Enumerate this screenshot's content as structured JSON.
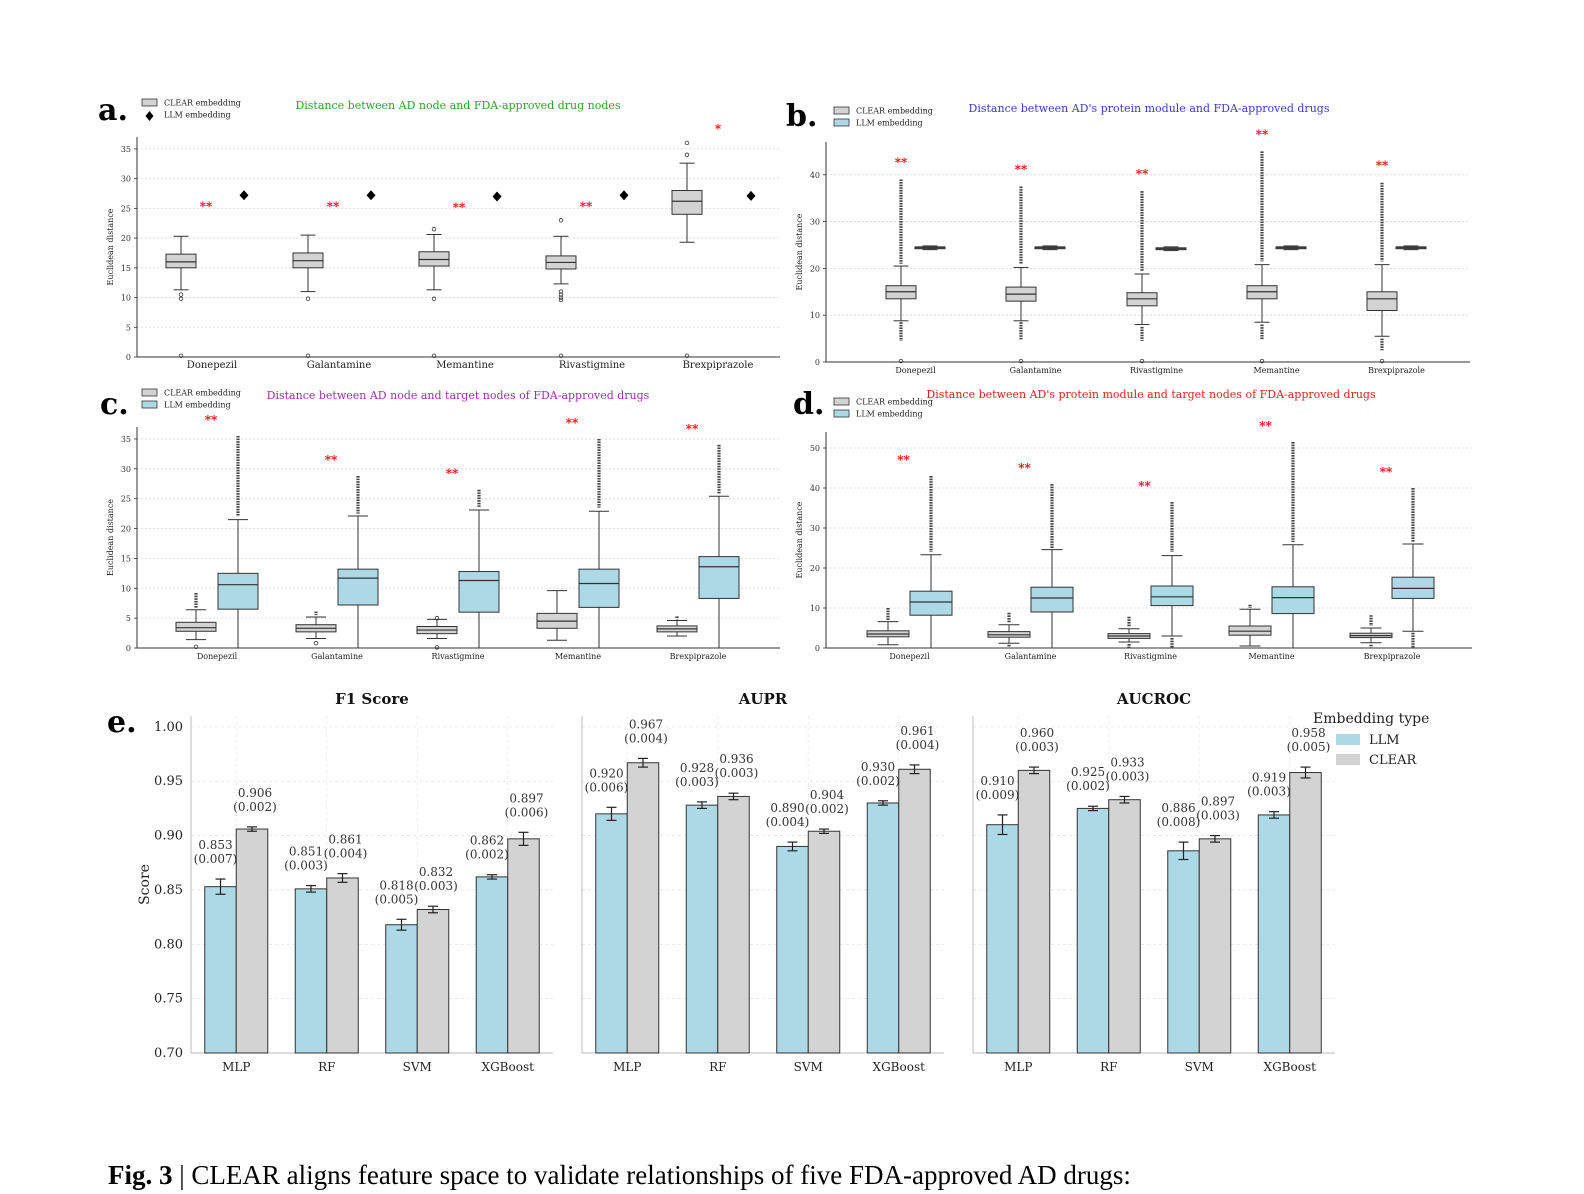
{
  "panels": [
    {
      "id": "a",
      "label": "a.",
      "title": "Distance between AD node and FDA-approved drug nodes",
      "title_color": "#2ca02c",
      "ylabel": "Euclidean distance",
      "ylim": [
        0,
        37
      ],
      "yticks": [
        0,
        5,
        10,
        15,
        20,
        25,
        30,
        35
      ],
      "legend": [
        "CLEAR embedding",
        "LLM embedding"
      ],
      "llm_style": "point"
    },
    {
      "id": "b",
      "label": "b.",
      "title": "Distance between AD's protein module and FDA-approved drugs",
      "title_color": "#3a3acf",
      "ylabel": "Euclidean distance",
      "ylim": [
        0,
        47
      ],
      "yticks": [
        0,
        10,
        20,
        30,
        40
      ],
      "legend": [
        "CLEAR embedding",
        "LLM embedding"
      ],
      "llm_style": "box"
    },
    {
      "id": "c",
      "label": "c.",
      "title": "Distance between AD node and target nodes of FDA-approved drugs",
      "title_color": "#9932a8",
      "ylabel": "Euclidean distance",
      "ylim": [
        0,
        37
      ],
      "yticks": [
        0,
        5,
        10,
        15,
        20,
        25,
        30,
        35
      ],
      "legend": [
        "CLEAR embedding",
        "LLM embedding"
      ],
      "llm_style": "box"
    },
    {
      "id": "d",
      "label": "d.",
      "title": "Distance between AD's protein module and target nodes of FDA-approved drugs",
      "title_color": "#e02020",
      "ylabel": "Euclidean distance",
      "ylim": [
        0,
        54
      ],
      "yticks": [
        0,
        10,
        20,
        30,
        40,
        50
      ],
      "legend": [
        "CLEAR embedding",
        "LLM embedding"
      ],
      "llm_style": "box"
    },
    {
      "id": "e",
      "label": "e.",
      "legend_title": "Embedding type",
      "legend": [
        "LLM",
        "CLEAR"
      ],
      "ylabel": "Score"
    }
  ],
  "chart_data": [
    {
      "type": "box",
      "panel": "a",
      "categories": [
        "Donepezil",
        "Galantamine",
        "Memantine",
        "Rivastigmine",
        "Brexpiprazole"
      ],
      "significance": [
        "**",
        "**",
        "**",
        "**",
        "*"
      ],
      "series": [
        {
          "name": "CLEAR embedding",
          "boxes": [
            {
              "q1": 15,
              "median": 16,
              "q3": 17.3,
              "whislo": 11.3,
              "whishi": 20.3,
              "fliers": [
                10.5,
                9.8,
                0.2
              ]
            },
            {
              "q1": 15,
              "median": 16.2,
              "q3": 17.5,
              "whislo": 11,
              "whishi": 20.5,
              "fliers": [
                9.8,
                0.2
              ]
            },
            {
              "q1": 15.3,
              "median": 16.4,
              "q3": 17.7,
              "whislo": 11.3,
              "whishi": 20.6,
              "fliers": [
                21.5,
                9.8,
                0.2
              ]
            },
            {
              "q1": 14.8,
              "median": 15.9,
              "q3": 17,
              "whislo": 12.3,
              "whishi": 20.3,
              "fliers": [
                23,
                11,
                10.5,
                10,
                9.6,
                0.2
              ]
            },
            {
              "q1": 24,
              "median": 26.2,
              "q3": 28,
              "whislo": 19.3,
              "whishi": 32.6,
              "fliers": [
                34,
                36,
                0.2
              ]
            }
          ]
        },
        {
          "name": "LLM embedding",
          "values": [
            27.2,
            27.2,
            27,
            27.2,
            27.1
          ]
        }
      ]
    },
    {
      "type": "box",
      "panel": "b",
      "categories": [
        "Donepezil",
        "Galantamine",
        "Rivastigmine",
        "Memantine",
        "Brexpiprazole"
      ],
      "significance": [
        "**",
        "**",
        "**",
        "**",
        "**"
      ],
      "series": [
        {
          "name": "CLEAR embedding",
          "boxes": [
            {
              "q1": 13.5,
              "median": 15,
              "q3": 16.3,
              "whislo": 8.8,
              "whishi": 20.5,
              "flier_low": [
                4.5,
                8.5
              ],
              "flier_high": [
                21,
                39
              ],
              "fliers": [
                0.2
              ]
            },
            {
              "q1": 13,
              "median": 14.5,
              "q3": 16,
              "whislo": 8.8,
              "whishi": 20.2,
              "flier_low": [
                4.8,
                8.5
              ],
              "flier_high": [
                21,
                37.5
              ],
              "fliers": [
                0.2
              ]
            },
            {
              "q1": 12,
              "median": 13.5,
              "q3": 14.8,
              "whislo": 8,
              "whishi": 18.8,
              "flier_low": [
                4.5,
                7.5
              ],
              "flier_high": [
                19.5,
                36.5
              ],
              "fliers": [
                0.2
              ]
            },
            {
              "q1": 13.5,
              "median": 15,
              "q3": 16.3,
              "whislo": 8.5,
              "whishi": 20.8,
              "flier_low": [
                4.8,
                8
              ],
              "flier_high": [
                21.5,
                45
              ],
              "fliers": [
                0.2
              ]
            },
            {
              "q1": 11,
              "median": 13.5,
              "q3": 15,
              "whislo": 5.5,
              "whishi": 20.8,
              "flier_low": [
                2.5,
                5
              ],
              "flier_high": [
                21.5,
                38.3
              ],
              "fliers": [
                0.2
              ]
            }
          ]
        },
        {
          "name": "LLM embedding",
          "boxes": [
            {
              "q1": 24.2,
              "median": 24.4,
              "q3": 24.6,
              "whislo": 24,
              "whishi": 24.8,
              "fliers": []
            },
            {
              "q1": 24.2,
              "median": 24.4,
              "q3": 24.6,
              "whislo": 24,
              "whishi": 24.8,
              "fliers": []
            },
            {
              "q1": 24,
              "median": 24.2,
              "q3": 24.4,
              "whislo": 23.8,
              "whishi": 24.6,
              "fliers": []
            },
            {
              "q1": 24.2,
              "median": 24.4,
              "q3": 24.6,
              "whislo": 24,
              "whishi": 24.8,
              "fliers": []
            },
            {
              "q1": 24.2,
              "median": 24.4,
              "q3": 24.6,
              "whislo": 24,
              "whishi": 24.8,
              "fliers": []
            }
          ]
        }
      ]
    },
    {
      "type": "box",
      "panel": "c",
      "categories": [
        "Donepezil",
        "Galantamine",
        "Rivastigmine",
        "Memantine",
        "Brexpiprazole"
      ],
      "significance": [
        "**",
        "**",
        "**",
        "**",
        "**"
      ],
      "series": [
        {
          "name": "CLEAR embedding",
          "boxes": [
            {
              "q1": 2.8,
              "median": 3.4,
              "q3": 4.3,
              "whislo": 1.4,
              "whishi": 6.4,
              "flier_high": [
                6.6,
                9.2
              ],
              "fliers": [
                0.2
              ]
            },
            {
              "q1": 2.7,
              "median": 3.3,
              "q3": 3.9,
              "whislo": 1.6,
              "whishi": 5.2,
              "flier_high": [
                5.5,
                6.1
              ],
              "fliers": [
                0.8
              ]
            },
            {
              "q1": 2.4,
              "median": 3,
              "q3": 3.6,
              "whislo": 1.6,
              "whishi": 4.8,
              "fliers": [
                5,
                0.1
              ]
            },
            {
              "q1": 3.3,
              "median": 4.5,
              "q3": 5.8,
              "whislo": 1.3,
              "whishi": 9.6,
              "fliers": []
            },
            {
              "q1": 2.7,
              "median": 3.2,
              "q3": 3.7,
              "whislo": 2,
              "whishi": 4.6,
              "flier_high": [
                4.8,
                5.3
              ],
              "fliers": []
            }
          ]
        },
        {
          "name": "LLM embedding",
          "boxes": [
            {
              "q1": 6.5,
              "median": 10.6,
              "q3": 12.5,
              "whislo": 0,
              "whishi": 21.5,
              "flier_high": [
                22,
                35.5
              ],
              "fliers": []
            },
            {
              "q1": 7.2,
              "median": 11.7,
              "q3": 13.2,
              "whislo": 0,
              "whishi": 22.1,
              "flier_high": [
                22.5,
                28.8
              ],
              "fliers": []
            },
            {
              "q1": 6,
              "median": 11.3,
              "q3": 12.8,
              "whislo": 0,
              "whishi": 23.1,
              "flier_high": [
                23.5,
                26.5
              ],
              "fliers": []
            },
            {
              "q1": 6.8,
              "median": 10.8,
              "q3": 13.2,
              "whislo": 0,
              "whishi": 22.9,
              "flier_high": [
                23.5,
                35
              ],
              "fliers": []
            },
            {
              "q1": 8.3,
              "median": 13.6,
              "q3": 15.3,
              "whislo": 0,
              "whishi": 25.4,
              "flier_high": [
                25.8,
                34
              ]
            }
          ]
        }
      ]
    },
    {
      "type": "box",
      "panel": "d",
      "categories": [
        "Donepezil",
        "Galantamine",
        "Rivastigmine",
        "Memantine",
        "Brexpiprazole"
      ],
      "significance": [
        "**",
        "**",
        "**",
        "**",
        "**"
      ],
      "series": [
        {
          "name": "CLEAR embedding",
          "boxes": [
            {
              "q1": 2.8,
              "median": 3.5,
              "q3": 4.3,
              "whislo": 0.8,
              "whishi": 6.6,
              "flier_high": [
                7,
                10
              ],
              "fliers": []
            },
            {
              "q1": 2.7,
              "median": 3.3,
              "q3": 4.1,
              "whislo": 1.2,
              "whishi": 5.8,
              "flier_high": [
                6.3,
                8.8
              ],
              "flier_low": [
                0.2,
                0.8
              ]
            },
            {
              "q1": 2.4,
              "median": 3,
              "q3": 3.6,
              "whislo": 1.5,
              "whishi": 4.8,
              "flier_high": [
                5.3,
                7.8
              ],
              "flier_low": [
                0,
                1
              ]
            },
            {
              "q1": 3.2,
              "median": 4.2,
              "q3": 5.5,
              "whislo": 0.5,
              "whishi": 9.7,
              "flier_high": [
                10,
                10.8
              ]
            },
            {
              "q1": 2.6,
              "median": 3.1,
              "q3": 3.7,
              "whislo": 1.3,
              "whishi": 5,
              "flier_high": [
                5.5,
                8.2
              ],
              "flier_low": [
                0,
                0.8
              ]
            }
          ]
        },
        {
          "name": "LLM embedding",
          "boxes": [
            {
              "q1": 8.2,
              "median": 11.5,
              "q3": 14.2,
              "whislo": 0,
              "whishi": 23.3,
              "flier_high": [
                24,
                43
              ]
            },
            {
              "q1": 9,
              "median": 12.5,
              "q3": 15.2,
              "whislo": 0,
              "whishi": 24.6,
              "flier_high": [
                25,
                41
              ]
            },
            {
              "q1": 10.6,
              "median": 12.8,
              "q3": 15.5,
              "whislo": 3,
              "whishi": 23.1,
              "flier_high": [
                24,
                36.5
              ],
              "flier_low": [
                0,
                2.5
              ]
            },
            {
              "q1": 8.6,
              "median": 12.6,
              "q3": 15.3,
              "whislo": 0,
              "whishi": 25.8,
              "flier_high": [
                26.5,
                51.5
              ]
            },
            {
              "q1": 12.4,
              "median": 14.9,
              "q3": 17.7,
              "whislo": 4.2,
              "whishi": 26,
              "flier_high": [
                26.5,
                40
              ],
              "flier_low": [
                0,
                3.8
              ]
            }
          ]
        }
      ]
    },
    {
      "type": "bar",
      "panel": "e",
      "title": "F1 Score",
      "categories": [
        "MLP",
        "RF",
        "SVM",
        "XGBoost"
      ],
      "ylabel": "Score",
      "ylim": [
        0.7,
        1.01
      ],
      "yticks": [
        "0.70",
        "0.75",
        "0.80",
        "0.85",
        "0.90",
        "0.95",
        "1.00"
      ],
      "series": [
        {
          "name": "LLM",
          "values": [
            0.853,
            0.851,
            0.818,
            0.862
          ],
          "sd": [
            0.007,
            0.003,
            0.005,
            0.002
          ]
        },
        {
          "name": "CLEAR",
          "values": [
            0.906,
            0.861,
            0.832,
            0.897
          ],
          "sd": [
            0.002,
            0.004,
            0.003,
            0.006
          ]
        }
      ],
      "labels": {
        "LLM": [
          "0.853\n(0.007)",
          "0.851\n(0.003)",
          "0.818\n(0.005)",
          "0.862\n(0.002)"
        ],
        "CLEAR": [
          "0.906\n(0.002)",
          "0.861\n(0.004)",
          "0.832\n(0.003)",
          "0.897\n(0.006)"
        ]
      }
    },
    {
      "type": "bar",
      "panel": "e",
      "title": "AUPR",
      "categories": [
        "MLP",
        "RF",
        "SVM",
        "XGBoost"
      ],
      "ylim": [
        0.7,
        1.01
      ],
      "series": [
        {
          "name": "LLM",
          "values": [
            0.92,
            0.928,
            0.89,
            0.93
          ],
          "sd": [
            0.006,
            0.003,
            0.004,
            0.002
          ]
        },
        {
          "name": "CLEAR",
          "values": [
            0.967,
            0.936,
            0.904,
            0.961
          ],
          "sd": [
            0.004,
            0.003,
            0.002,
            0.004
          ]
        }
      ],
      "labels": {
        "LLM": [
          "0.920\n(0.006)",
          "0.928\n(0.003)",
          "0.890\n(0.004)",
          "0.930\n(0.002)"
        ],
        "CLEAR": [
          "0.967\n(0.004)",
          "0.936\n(0.003)",
          "0.904\n(0.002)",
          "0.961\n(0.004)"
        ]
      }
    },
    {
      "type": "bar",
      "panel": "e",
      "title": "AUCROC",
      "categories": [
        "MLP",
        "RF",
        "SVM",
        "XGBoost"
      ],
      "ylim": [
        0.7,
        1.01
      ],
      "series": [
        {
          "name": "LLM",
          "values": [
            0.91,
            0.925,
            0.886,
            0.919
          ],
          "sd": [
            0.009,
            0.002,
            0.008,
            0.003
          ]
        },
        {
          "name": "CLEAR",
          "values": [
            0.96,
            0.933,
            0.897,
            0.958
          ],
          "sd": [
            0.003,
            0.003,
            0.003,
            0.005
          ]
        }
      ],
      "labels": {
        "LLM": [
          "0.910\n(0.009)",
          "0.925\n(0.002)",
          "0.886\n(0.008)",
          "0.919\n(0.003)"
        ],
        "CLEAR": [
          "0.960\n(0.003)",
          "0.933\n(0.003)",
          "0.897\n(0.003)",
          "0.958\n(0.005)"
        ]
      }
    }
  ],
  "colors": {
    "clear_box": "#d3d3d3",
    "llm_box": "#add8e6",
    "star": "#ff0000",
    "bar_edge": "#333333"
  },
  "caption": {
    "prefix": "Fig. 3",
    "rest": " | CLEAR aligns feature space to validate relationships of five FDA-approved AD drugs:"
  }
}
